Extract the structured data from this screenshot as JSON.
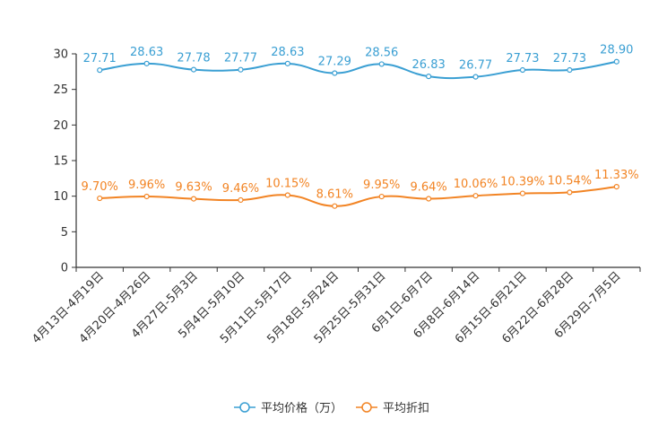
{
  "chart_data": {
    "type": "line",
    "title": "",
    "xlabel": "",
    "ylabel": "",
    "ylim": [
      0,
      30
    ],
    "yticks": [
      0,
      5,
      10,
      15,
      20,
      25,
      30
    ],
    "grid": false,
    "legend_position": "bottom-center",
    "categories": [
      "4月13日-4月19日",
      "4月20日-4月26日",
      "4月27日-5月3日",
      "5月4日-5月10日",
      "5月11日-5月17日",
      "5月18日-5月24日",
      "5月25日-5月31日",
      "6月1日-6月7日",
      "6月8日-6月14日",
      "6月15日-6月21日",
      "6月22日-6月28日",
      "6月29日-7月5日"
    ],
    "series": [
      {
        "name": "平均价格（万）",
        "color": "#3a9fd3",
        "values": [
          27.71,
          28.63,
          27.78,
          27.77,
          28.63,
          27.29,
          28.56,
          26.83,
          26.77,
          27.73,
          27.73,
          28.9
        ],
        "labels": [
          "27.71",
          "28.63",
          "27.78",
          "27.77",
          "28.63",
          "27.29",
          "28.56",
          "26.83",
          "26.77",
          "27.73",
          "27.73",
          "28.90"
        ]
      },
      {
        "name": "平均折扣",
        "color": "#f28424",
        "values": [
          9.7,
          9.96,
          9.63,
          9.46,
          10.15,
          8.61,
          9.95,
          9.64,
          10.06,
          10.39,
          10.54,
          11.33
        ],
        "labels": [
          "9.70%",
          "9.96%",
          "9.63%",
          "9.46%",
          "10.15%",
          "8.61%",
          "9.95%",
          "9.64%",
          "10.06%",
          "10.39%",
          "10.54%",
          "11.33%"
        ]
      }
    ]
  }
}
